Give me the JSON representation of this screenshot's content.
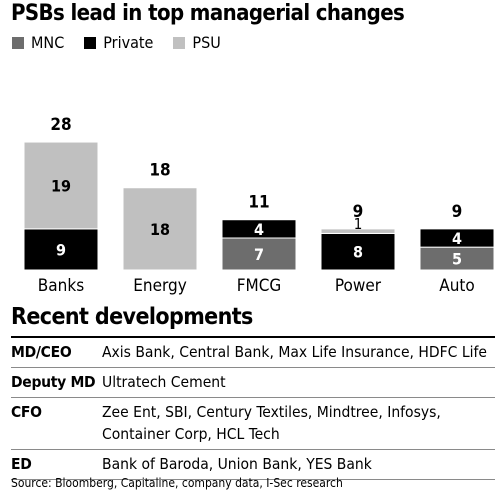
{
  "title": "PSBs lead in top managerial changes",
  "legend": [
    {
      "name": "MNC",
      "color": "#6d6d6d"
    },
    {
      "name": "Private",
      "color": "#000000"
    },
    {
      "name": "PSU",
      "color": "#c0c0c0"
    }
  ],
  "chart_data": {
    "type": "bar",
    "stacked": true,
    "categories": [
      "Banks",
      "Energy",
      "FMCG",
      "Power",
      "Auto"
    ],
    "series": [
      {
        "name": "MNC",
        "color": "#6d6d6d",
        "values": [
          0,
          0,
          7,
          0,
          5
        ]
      },
      {
        "name": "Private",
        "color": "#000000",
        "values": [
          9,
          0,
          4,
          8,
          4
        ]
      },
      {
        "name": "PSU",
        "color": "#c0c0c0",
        "values": [
          19,
          18,
          0,
          1,
          0
        ]
      }
    ],
    "totals": [
      28,
      18,
      11,
      9,
      9
    ],
    "legend_position": "top-left",
    "grid": false,
    "ylim": [
      0,
      28
    ]
  },
  "developments": {
    "title": "Recent developments",
    "rows": [
      {
        "role": "MD/CEO",
        "names": [
          "Axis Bank, Central Bank, Max Life Insurance, HDFC Life"
        ]
      },
      {
        "role": "Deputy MD",
        "names": [
          "Ultratech Cement"
        ]
      },
      {
        "role": "CFO",
        "names": [
          "Zee Ent, SBI, Century Textiles, Mindtree, Infosys,",
          "Container Corp, HCL Tech"
        ]
      },
      {
        "role": "ED",
        "names": [
          "Bank of Baroda, Union Bank, YES Bank"
        ]
      }
    ]
  },
  "source": "Source: Bloomberg, Capitaline, company data, I-Sec research"
}
